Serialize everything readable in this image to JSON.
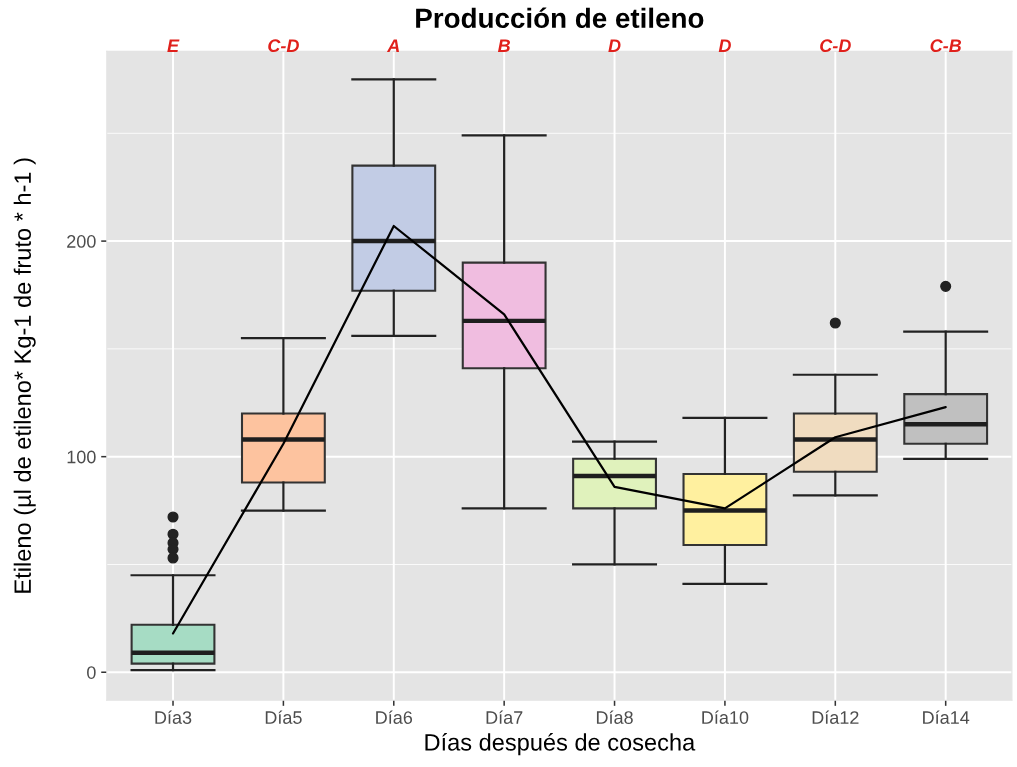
{
  "chart_data": {
    "type": "box",
    "title": "Producción de etileno",
    "xlabel": "Días después de cosecha",
    "ylabel": "Etileno (µl de etileno* Kg-1 de fruto * h-1 )",
    "categories": [
      "Día3",
      "Día5",
      "Día6",
      "Día7",
      "Día8",
      "Día10",
      "Día12",
      "Día14"
    ],
    "series": [
      {
        "type": "box",
        "colors": [
          "#a6dcc4",
          "#fdc39f",
          "#c2cce5",
          "#f0bde0",
          "#e0f2bc",
          "#fff09f",
          "#f0dcc0",
          "#c0c0c0"
        ],
        "boxes": [
          {
            "low": 1,
            "q1": 4,
            "median": 9,
            "q3": 22,
            "high": 45,
            "outliers": [
              72,
              64,
              60,
              57,
              53
            ]
          },
          {
            "low": 75,
            "q1": 88,
            "median": 108,
            "q3": 120,
            "high": 155
          },
          {
            "low": 156,
            "q1": 177,
            "median": 200,
            "q3": 235,
            "high": 275
          },
          {
            "low": 76,
            "q1": 141,
            "median": 163,
            "q3": 190,
            "high": 249
          },
          {
            "low": 50,
            "q1": 76,
            "median": 91,
            "q3": 99,
            "high": 107
          },
          {
            "low": 41,
            "q1": 59,
            "median": 75,
            "q3": 92,
            "high": 118
          },
          {
            "low": 82,
            "q1": 93,
            "median": 108,
            "q3": 120,
            "high": 138,
            "outliers": [
              162
            ]
          },
          {
            "low": 99,
            "q1": 106,
            "median": 115,
            "q3": 129,
            "high": 158,
            "outliers": [
              179
            ]
          }
        ]
      },
      {
        "type": "line",
        "color": "#000000",
        "values": [
          18,
          106,
          207,
          166,
          86,
          76,
          109,
          123
        ]
      }
    ],
    "ylim": [
      -13,
      288
    ],
    "yticks": [
      0,
      100,
      200
    ],
    "grid": true,
    "annotations": [
      "E",
      "C-D",
      "A",
      "B",
      "D",
      "D",
      "C-D",
      "C-B"
    ]
  }
}
